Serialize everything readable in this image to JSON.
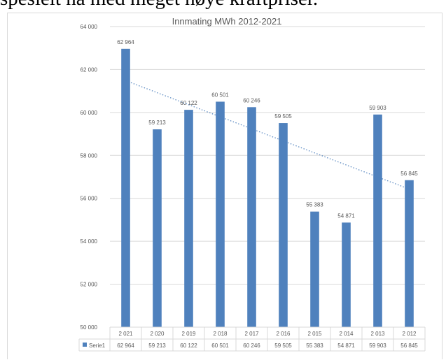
{
  "page": {
    "text": "spesielt nå med meget høye kraftpriser."
  },
  "chart_data": {
    "type": "bar",
    "title": "Innmating MWh 2012-2021",
    "xlabel": "",
    "ylabel": "",
    "categories": [
      "2 021",
      "2 020",
      "2 019",
      "2 018",
      "2 017",
      "2 016",
      "2 015",
      "2 014",
      "2 013",
      "2 012"
    ],
    "series": [
      {
        "name": "Serie1",
        "values": [
          62964,
          59213,
          60122,
          60501,
          60246,
          59505,
          55383,
          54871,
          59903,
          56845
        ],
        "labels": [
          "62 964",
          "59 213",
          "60 122",
          "60 501",
          "60 246",
          "59 505",
          "55 383",
          "54 871",
          "59 903",
          "56 845"
        ],
        "color": "#4f81bd"
      }
    ],
    "ylim": [
      50000,
      64000
    ],
    "yticks": [
      50000,
      52000,
      54000,
      56000,
      58000,
      60000,
      62000,
      64000
    ],
    "ytick_labels": [
      "50 000",
      "52 000",
      "54 000",
      "56 000",
      "58 000",
      "60 000",
      "62 000",
      "64 000"
    ],
    "trendline": {
      "type": "linear",
      "style": "dotted",
      "color": "#4f81bd"
    },
    "data_table": true,
    "grid": true,
    "axis_color": "#d9d9d9",
    "text_color": "#595959"
  }
}
